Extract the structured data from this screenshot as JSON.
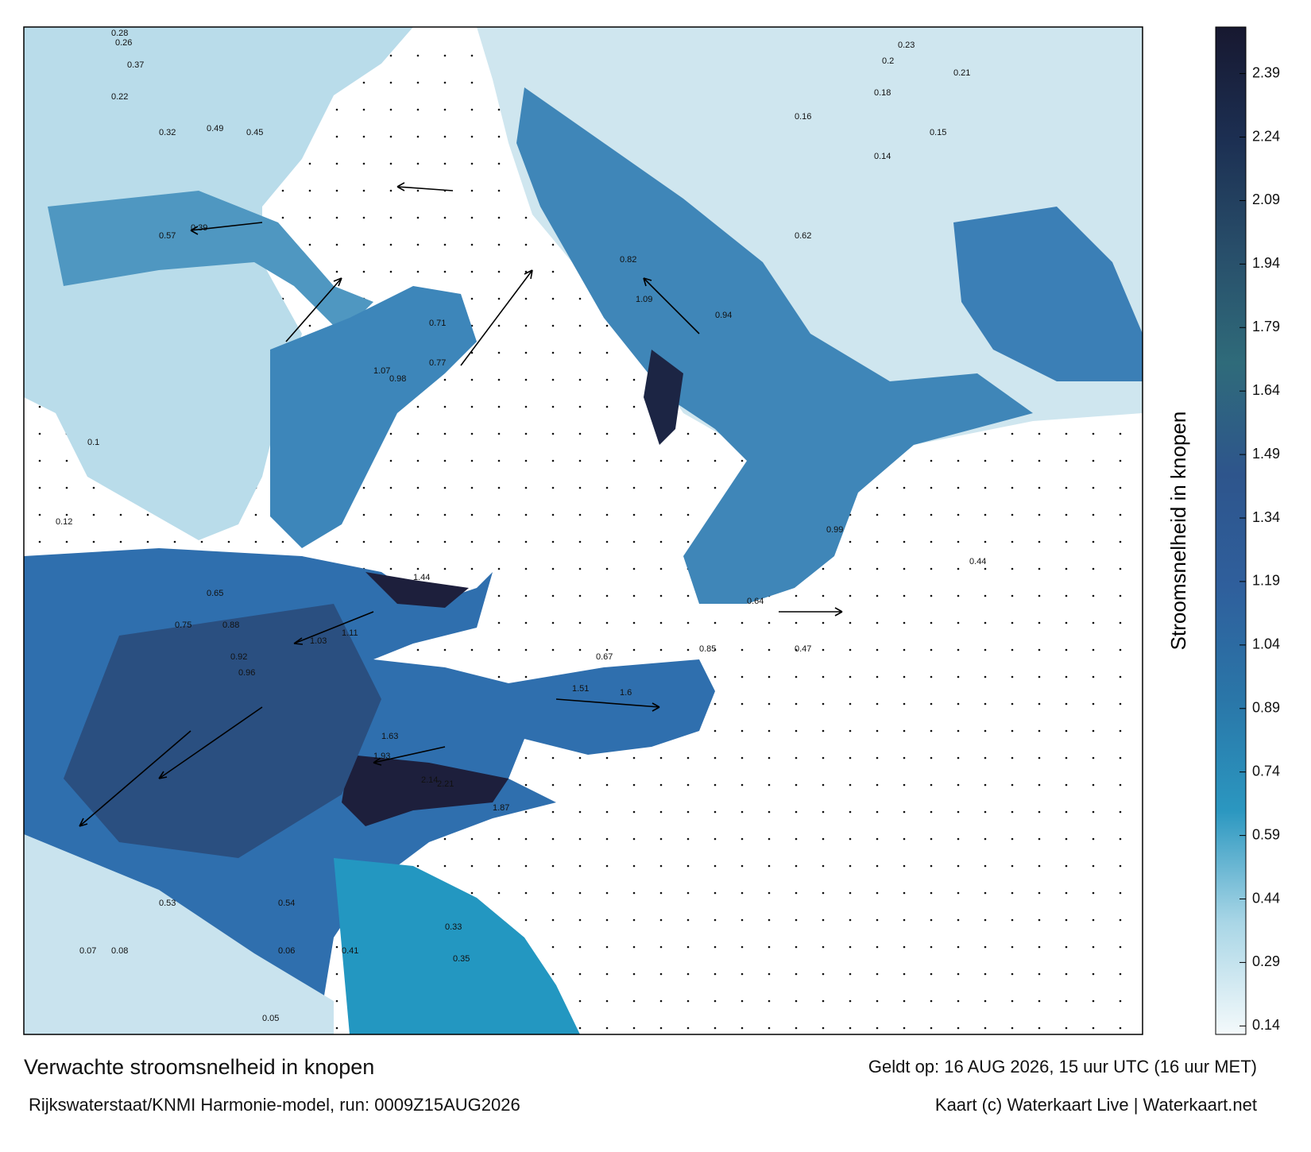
{
  "map": {
    "title": "Verwachte stroomsnelheid in knopen",
    "valid": "Geldt op: 16 AUG 2026, 15 uur UTC (16 uur MET)",
    "model": "Rijkswaterstaat/KNMI Harmonie-model, run: 0009Z15AUG2026",
    "credit": "Kaart (c) Waterkaart Live | Waterkaart.net",
    "colorbar": {
      "label": "Stroomsnelheid in knopen",
      "lim": [
        0.12,
        2.5
      ],
      "ticks": [
        0.14,
        0.29,
        0.44,
        0.59,
        0.74,
        0.89,
        1.04,
        1.19,
        1.34,
        1.49,
        1.64,
        1.79,
        1.94,
        2.09,
        2.24,
        2.39
      ],
      "colors": [
        "#f4f9fb",
        "#a9d6e6",
        "#2b97c0",
        "#2a76a8",
        "#2f5f9c",
        "#2e558c",
        "#2f6b7a",
        "#284e6a",
        "#1c2f52",
        "#171830"
      ]
    },
    "speed_labels": [
      0.28,
      0.26,
      0.37,
      0.22,
      0.32,
      0.49,
      0.45,
      0.57,
      0.39,
      0.2,
      0.21,
      0.18,
      0.16,
      0.15,
      0.14,
      0.23,
      0.47,
      0.82,
      1.09,
      0.94,
      0.62,
      0.71,
      0.98,
      1.07,
      0.77,
      0.65,
      0.88,
      1.11,
      1.44,
      1.03,
      0.92,
      0.96,
      1.63,
      1.93,
      2.14,
      2.21,
      1.87,
      1.51,
      1.6,
      0.67,
      0.85,
      0.99,
      0.75,
      0.54,
      0.08,
      0.07,
      0.06,
      0.05,
      0.41,
      0.35,
      0.33,
      0.12,
      0.1,
      0.53,
      0.64,
      0.44
    ]
  }
}
